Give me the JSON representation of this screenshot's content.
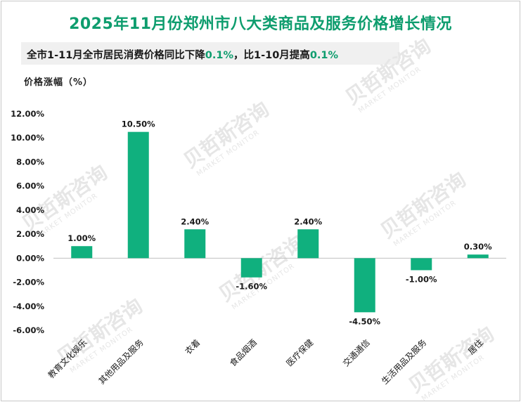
{
  "header": {
    "title": "2025年11月份郑州市八大类商品及服务价格增长情况",
    "subtitle_part1": "全市1-11月全市居民消费价格同比下降",
    "subtitle_value1": "0.1%",
    "subtitle_part2": "，比1-10月提高",
    "subtitle_value2": "0.1%"
  },
  "colors": {
    "accent": "#0e9d6e",
    "bar": "#10b07e",
    "watermark": "#e6e6e6"
  },
  "watermark": {
    "cn": "贝哲斯咨询",
    "en": "MARKET MONITOR"
  },
  "chart_data": {
    "type": "bar",
    "ylabel": "价格涨幅（%）",
    "xlabel": "",
    "categories": [
      "教育文化娱乐",
      "其他用品及服务",
      "衣着",
      "食品烟酒",
      "医疗保健",
      "交通通信",
      "生活用品及服务",
      "居住"
    ],
    "values": [
      1.0,
      10.5,
      2.4,
      -1.6,
      2.4,
      -4.5,
      -1.0,
      0.3
    ],
    "value_labels": [
      "1.00%",
      "10.50%",
      "2.40%",
      "-1.60%",
      "2.40%",
      "-4.50%",
      "-1.00%",
      "0.30%"
    ],
    "ylim": [
      -6,
      12
    ],
    "yticks": [
      12,
      10,
      8,
      6,
      4,
      2,
      0,
      -2,
      -4,
      -6
    ],
    "ytick_labels": [
      "12.00%",
      "10.00%",
      "8.00%",
      "6.00%",
      "4.00%",
      "2.00%",
      "0.00%",
      "-2.00%",
      "-4.00%",
      "-6.00%"
    ],
    "grid": false,
    "legend": "none"
  }
}
